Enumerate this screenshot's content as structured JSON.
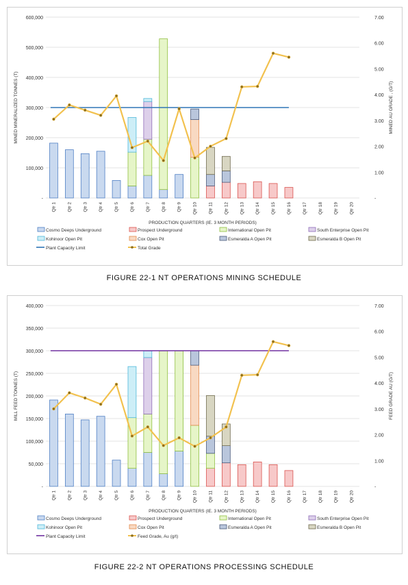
{
  "legend_items": [
    {
      "label": "Cosmo Deeps Underground",
      "fill": "#c9d9ef",
      "stroke": "#4f7fc4",
      "kind": "box"
    },
    {
      "label": "Prospect Underground",
      "fill": "#f7c9c9",
      "stroke": "#d9534f",
      "kind": "box"
    },
    {
      "label": "International Open Pit",
      "fill": "#e6f5c8",
      "stroke": "#8fbf3f",
      "kind": "box"
    },
    {
      "label": "South Enterprise Open Pit",
      "fill": "#ddd0ea",
      "stroke": "#8e6bb8",
      "kind": "box"
    },
    {
      "label": "Kohinoor Open Pit",
      "fill": "#cdeef7",
      "stroke": "#4fb8d9",
      "kind": "box"
    },
    {
      "label": "Cox Open Pit",
      "fill": "#f8d9c2",
      "stroke": "#e38b4f",
      "kind": "box"
    },
    {
      "label": "Esmeralda A Open Pit",
      "fill": "#b9c6dc",
      "stroke": "#4a5a7a",
      "kind": "box"
    },
    {
      "label": "Esmeralda B Open Pit",
      "fill": "#d8d6c2",
      "stroke": "#6f6a4f",
      "kind": "box"
    }
  ],
  "chart_data": [
    {
      "type": "bar",
      "caption": "FIGURE 22-1 NT OPERATIONS MINING SCHEDULE",
      "xlabel": "PRODUCTION QUARTERS (IE. 3 MONTH PERIODS)",
      "ylabel": "MINED MINERALIZED TONNES (T)",
      "y2label": "MINED AU GRADE , (G/T)",
      "categories": [
        "Qtr 1",
        "Qtr 2",
        "Qtr 3",
        "Qtr 4",
        "Qtr 5",
        "Qtr 6",
        "Qtr 7",
        "Qtr 8",
        "Qtr 9",
        "Qtr 10",
        "Qtr 11",
        "Qtr 12",
        "Qtr 13",
        "Qtr 14",
        "Qtr 15",
        "Qtr 16",
        "Qtr 17",
        "Qtr 18",
        "Qtr 19",
        "Qtr 20"
      ],
      "ylim": [
        0,
        600000
      ],
      "y_ticks": [
        0,
        100000,
        200000,
        300000,
        400000,
        500000,
        600000
      ],
      "y_tick_labels": [
        "-",
        "100,000",
        "200,000",
        "300,000",
        "400,000",
        "500,000",
        "600,000"
      ],
      "y2lim": [
        0,
        7
      ],
      "y2_ticks": [
        0,
        1,
        2,
        3,
        4,
        5,
        6,
        7
      ],
      "y2_tick_labels": [
        "-",
        "1.00",
        "2.00",
        "3.00",
        "4.00",
        "5.00",
        "6.00",
        "7.00"
      ],
      "series": [
        {
          "name": "Cosmo Deeps Underground",
          "values": [
            182000,
            160000,
            147000,
            155000,
            58000,
            40000,
            75000,
            28000,
            78000,
            0,
            0,
            0,
            0,
            0,
            0,
            0,
            0,
            0,
            0,
            0
          ]
        },
        {
          "name": "Prospect Underground",
          "values": [
            0,
            0,
            0,
            0,
            0,
            0,
            0,
            0,
            0,
            0,
            40000,
            52000,
            48000,
            54000,
            48000,
            35000,
            0,
            0,
            0,
            0
          ]
        },
        {
          "name": "International Open Pit",
          "values": [
            0,
            0,
            0,
            0,
            0,
            112000,
            120000,
            500000,
            0,
            135000,
            0,
            0,
            0,
            0,
            0,
            0,
            0,
            0,
            0,
            0
          ]
        },
        {
          "name": "South Enterprise Open Pit",
          "values": [
            0,
            0,
            0,
            0,
            0,
            0,
            125000,
            0,
            0,
            0,
            0,
            0,
            0,
            0,
            0,
            0,
            0,
            0,
            0,
            0
          ]
        },
        {
          "name": "Kohinoor Open Pit",
          "values": [
            0,
            0,
            0,
            0,
            0,
            115000,
            10000,
            0,
            0,
            0,
            0,
            0,
            0,
            0,
            0,
            0,
            0,
            0,
            0,
            0
          ]
        },
        {
          "name": "Cox Open Pit",
          "values": [
            0,
            0,
            0,
            0,
            0,
            0,
            0,
            0,
            0,
            125000,
            0,
            0,
            0,
            0,
            0,
            0,
            0,
            0,
            0,
            0
          ]
        },
        {
          "name": "Esmeralda A Open Pit",
          "values": [
            0,
            0,
            0,
            0,
            0,
            0,
            0,
            0,
            0,
            35000,
            38000,
            38000,
            0,
            0,
            0,
            0,
            0,
            0,
            0,
            0
          ]
        },
        {
          "name": "Esmeralda B Open Pit",
          "values": [
            0,
            0,
            0,
            0,
            0,
            0,
            0,
            0,
            0,
            0,
            90000,
            48000,
            0,
            0,
            0,
            0,
            0,
            0,
            0,
            0
          ]
        }
      ],
      "capacity_line": {
        "name": "Plant Capacity Limit",
        "value": 300000,
        "x_end": "Qtr 16",
        "color": "#2e75b6"
      },
      "grade_line": {
        "name": "Total Grade",
        "color": "#f2c14e",
        "values": [
          3.05,
          3.6,
          3.4,
          3.2,
          3.95,
          1.95,
          2.2,
          1.45,
          3.45,
          1.55,
          2.0,
          2.3,
          4.3,
          4.32,
          5.6,
          5.45
        ]
      },
      "grid": true,
      "legend_placement": "bottom"
    },
    {
      "type": "bar",
      "caption": "FIGURE 22-2 NT OPERATIONS PROCESSING SCHEDULE",
      "xlabel": "PRODUCTION QUARTERS (IE. 3 MONTH PERIODS)",
      "ylabel": "MILL FEED TONNES (T)",
      "y2label": "FEED GRADE AU (G/T)",
      "categories": [
        "Qtr 1",
        "Qtr 2",
        "Qtr 3",
        "Qtr 4",
        "Qtr 5",
        "Qtr 6",
        "Qtr 7",
        "Qtr 8",
        "Qtr 9",
        "Qtr 10",
        "Qtr 11",
        "Qtr 12",
        "Qtr 13",
        "Qtr 14",
        "Qtr 15",
        "Qtr 16",
        "Qtr 17",
        "Qtr 18",
        "Qtr 19",
        "Qtr 20"
      ],
      "ylim": [
        0,
        400000
      ],
      "y_ticks": [
        0,
        50000,
        100000,
        150000,
        200000,
        250000,
        300000,
        350000,
        400000
      ],
      "y_tick_labels": [
        "-",
        "50,000",
        "100,000",
        "150,000",
        "200,000",
        "250,000",
        "300,000",
        "350,000",
        "400,000"
      ],
      "y2lim": [
        0,
        7
      ],
      "y2_ticks": [
        0,
        1,
        2,
        3,
        4,
        5,
        6,
        7
      ],
      "y2_tick_labels": [
        "-",
        "1.00",
        "2.00",
        "3.00",
        "4.00",
        "5.00",
        "6.00",
        "7.00"
      ],
      "series": [
        {
          "name": "Cosmo Deeps Underground",
          "values": [
            191000,
            160000,
            147000,
            155000,
            58000,
            40000,
            75000,
            28000,
            78000,
            0,
            0,
            0,
            0,
            0,
            0,
            0,
            0,
            0,
            0,
            0
          ]
        },
        {
          "name": "Prospect Underground",
          "values": [
            0,
            0,
            0,
            0,
            0,
            0,
            0,
            0,
            0,
            0,
            40000,
            52000,
            48000,
            54000,
            48000,
            35000,
            0,
            0,
            0,
            0
          ]
        },
        {
          "name": "International Open Pit",
          "values": [
            0,
            0,
            0,
            0,
            0,
            112000,
            85000,
            272000,
            222000,
            135000,
            33000,
            0,
            0,
            0,
            0,
            0,
            0,
            0,
            0,
            0
          ]
        },
        {
          "name": "South Enterprise Open Pit",
          "values": [
            0,
            0,
            0,
            0,
            0,
            0,
            125000,
            0,
            0,
            0,
            0,
            0,
            0,
            0,
            0,
            0,
            0,
            0,
            0,
            0
          ]
        },
        {
          "name": "Kohinoor Open Pit",
          "values": [
            0,
            0,
            0,
            0,
            0,
            113000,
            15000,
            0,
            0,
            0,
            0,
            0,
            0,
            0,
            0,
            0,
            0,
            0,
            0,
            0
          ]
        },
        {
          "name": "Cox Open Pit",
          "values": [
            0,
            0,
            0,
            0,
            0,
            0,
            0,
            0,
            0,
            133000,
            0,
            0,
            0,
            0,
            0,
            0,
            0,
            0,
            0,
            0
          ]
        },
        {
          "name": "Esmeralda A Open Pit",
          "values": [
            0,
            0,
            0,
            0,
            0,
            0,
            0,
            0,
            0,
            32000,
            38000,
            38000,
            0,
            0,
            0,
            0,
            0,
            0,
            0,
            0
          ]
        },
        {
          "name": "Esmeralda B Open Pit",
          "values": [
            0,
            0,
            0,
            0,
            0,
            0,
            0,
            0,
            0,
            0,
            90000,
            48000,
            0,
            0,
            0,
            0,
            0,
            0,
            0,
            0
          ]
        }
      ],
      "capacity_line": {
        "name": "Plant Capacity Limit",
        "value": 300000,
        "x_end": "Qtr 16",
        "color": "#7030a0"
      },
      "grade_line": {
        "name": "Feed Grade, Au (g/t)",
        "color": "#f2c14e",
        "values": [
          3.0,
          3.62,
          3.42,
          3.18,
          3.95,
          1.95,
          2.3,
          1.58,
          1.88,
          1.55,
          1.88,
          2.3,
          4.3,
          4.32,
          5.6,
          5.45
        ]
      },
      "grid": true,
      "legend_placement": "bottom"
    }
  ]
}
